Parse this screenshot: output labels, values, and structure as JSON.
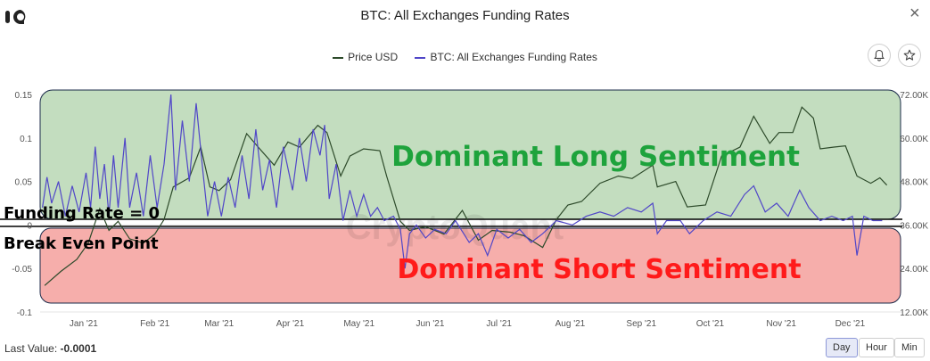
{
  "header": {
    "title": "BTC: All Exchanges Funding Rates",
    "close_glyph": "×"
  },
  "legend": {
    "price_label": "Price USD",
    "funding_label": "BTC: All Exchanges Funding Rates"
  },
  "watermark": "CryptoQuant",
  "annotations": {
    "long": "Dominant Long Sentiment",
    "short": "Dominant Short Sentiment",
    "zero_line": "Funding Rate = 0",
    "break_even": "Break Even Point"
  },
  "footer": {
    "last_value_label": "Last Value:",
    "last_value": "-0.0001"
  },
  "range_buttons": {
    "day": "Day",
    "hour": "Hour",
    "min": "Min"
  },
  "colors": {
    "price": "#2d4a2a",
    "funding": "#5046c8",
    "long_zone": "#c3ddbf",
    "short_zone": "#f6aeab",
    "long_text": "#1ea33c",
    "short_text": "#ff1a1a"
  },
  "chart_data": {
    "type": "line",
    "x_range": [
      "2020-12-13",
      "2021-12-23"
    ],
    "x_ticks": [
      "Jan '21",
      "Feb '21",
      "Mar '21",
      "Apr '21",
      "May '21",
      "Jun '21",
      "Jul '21",
      "Aug '21",
      "Sep '21",
      "Oct '21",
      "Nov '21",
      "Dec '21"
    ],
    "y_left": {
      "ylim": [
        -0.1,
        0.15
      ],
      "ticks": [
        "0.15",
        "0.1",
        "0.05",
        "0",
        "-0.05",
        "-0.1"
      ]
    },
    "y_right": {
      "ylim": [
        12000,
        72000
      ],
      "ticks": [
        "72.00K",
        "60.00K",
        "48.00K",
        "36.00K",
        "24.00K",
        "12.00K"
      ]
    },
    "series": [
      {
        "name": "Price USD",
        "axis": "right",
        "points": [
          [
            "2020-12-15",
            19300
          ],
          [
            "2020-12-22",
            23200
          ],
          [
            "2020-12-29",
            26500
          ],
          [
            "2021-01-03",
            31000
          ],
          [
            "2021-01-08",
            40500
          ],
          [
            "2021-01-12",
            34500
          ],
          [
            "2021-01-16",
            37000
          ],
          [
            "2021-01-21",
            32200
          ],
          [
            "2021-01-27",
            31000
          ],
          [
            "2021-02-01",
            33500
          ],
          [
            "2021-02-05",
            37500
          ],
          [
            "2021-02-09",
            46500
          ],
          [
            "2021-02-16",
            49000
          ],
          [
            "2021-02-21",
            57500
          ],
          [
            "2021-02-25",
            46500
          ],
          [
            "2021-03-01",
            45500
          ],
          [
            "2021-03-06",
            48500
          ],
          [
            "2021-03-13",
            61200
          ],
          [
            "2021-03-18",
            57500
          ],
          [
            "2021-03-25",
            52500
          ],
          [
            "2021-03-31",
            58900
          ],
          [
            "2021-04-05",
            57500
          ],
          [
            "2021-04-13",
            63500
          ],
          [
            "2021-04-17",
            61500
          ],
          [
            "2021-04-23",
            49500
          ],
          [
            "2021-04-27",
            55000
          ],
          [
            "2021-05-03",
            57000
          ],
          [
            "2021-05-10",
            56500
          ],
          [
            "2021-05-13",
            49500
          ],
          [
            "2021-05-19",
            37000
          ],
          [
            "2021-05-23",
            34500
          ],
          [
            "2021-05-30",
            35500
          ],
          [
            "2021-06-07",
            33500
          ],
          [
            "2021-06-15",
            40000
          ],
          [
            "2021-06-22",
            31800
          ],
          [
            "2021-06-28",
            34500
          ],
          [
            "2021-07-06",
            34000
          ],
          [
            "2021-07-12",
            33000
          ],
          [
            "2021-07-20",
            29800
          ],
          [
            "2021-07-26",
            37500
          ],
          [
            "2021-07-31",
            41500
          ],
          [
            "2021-08-06",
            42500
          ],
          [
            "2021-08-14",
            47500
          ],
          [
            "2021-08-22",
            49500
          ],
          [
            "2021-08-28",
            48800
          ],
          [
            "2021-09-06",
            52500
          ],
          [
            "2021-09-08",
            46500
          ],
          [
            "2021-09-16",
            48000
          ],
          [
            "2021-09-21",
            41000
          ],
          [
            "2021-09-29",
            41500
          ],
          [
            "2021-10-06",
            55000
          ],
          [
            "2021-10-14",
            57500
          ],
          [
            "2021-10-20",
            66000
          ],
          [
            "2021-10-27",
            58500
          ],
          [
            "2021-10-31",
            61500
          ],
          [
            "2021-11-06",
            61500
          ],
          [
            "2021-11-10",
            68500
          ],
          [
            "2021-11-15",
            65500
          ],
          [
            "2021-11-18",
            57000
          ],
          [
            "2021-11-24",
            57500
          ],
          [
            "2021-11-29",
            57800
          ],
          [
            "2021-12-04",
            49500
          ],
          [
            "2021-12-10",
            47500
          ],
          [
            "2021-12-14",
            49000
          ],
          [
            "2021-12-17",
            47000
          ]
        ]
      },
      {
        "name": "BTC: All Exchanges Funding Rates",
        "axis": "left",
        "points": [
          [
            "2020-12-14",
            0.02
          ],
          [
            "2020-12-16",
            0.055
          ],
          [
            "2020-12-18",
            0.025
          ],
          [
            "2020-12-21",
            0.05
          ],
          [
            "2020-12-24",
            0.01
          ],
          [
            "2020-12-27",
            0.045
          ],
          [
            "2020-12-30",
            0.015
          ],
          [
            "2021-01-02",
            0.06
          ],
          [
            "2021-01-04",
            0.02
          ],
          [
            "2021-01-06",
            0.09
          ],
          [
            "2021-01-08",
            0.03
          ],
          [
            "2021-01-10",
            0.07
          ],
          [
            "2021-01-12",
            0.01
          ],
          [
            "2021-01-14",
            0.08
          ],
          [
            "2021-01-16",
            0.02
          ],
          [
            "2021-01-19",
            0.1
          ],
          [
            "2021-01-21",
            0.02
          ],
          [
            "2021-01-24",
            0.06
          ],
          [
            "2021-01-27",
            0.01
          ],
          [
            "2021-01-30",
            0.08
          ],
          [
            "2021-02-02",
            0.02
          ],
          [
            "2021-02-05",
            0.07
          ],
          [
            "2021-02-08",
            0.15
          ],
          [
            "2021-02-10",
            0.04
          ],
          [
            "2021-02-13",
            0.12
          ],
          [
            "2021-02-16",
            0.05
          ],
          [
            "2021-02-19",
            0.14
          ],
          [
            "2021-02-22",
            0.06
          ],
          [
            "2021-02-24",
            0.01
          ],
          [
            "2021-02-27",
            0.05
          ],
          [
            "2021-03-02",
            0.01
          ],
          [
            "2021-03-05",
            0.055
          ],
          [
            "2021-03-08",
            0.02
          ],
          [
            "2021-03-11",
            0.08
          ],
          [
            "2021-03-14",
            0.03
          ],
          [
            "2021-03-17",
            0.11
          ],
          [
            "2021-03-20",
            0.04
          ],
          [
            "2021-03-23",
            0.075
          ],
          [
            "2021-03-26",
            0.02
          ],
          [
            "2021-03-29",
            0.09
          ],
          [
            "2021-04-02",
            0.04
          ],
          [
            "2021-04-05",
            0.1
          ],
          [
            "2021-04-08",
            0.05
          ],
          [
            "2021-04-11",
            0.11
          ],
          [
            "2021-04-14",
            0.08
          ],
          [
            "2021-04-16",
            0.115
          ],
          [
            "2021-04-18",
            0.03
          ],
          [
            "2021-04-21",
            0.07
          ],
          [
            "2021-04-24",
            0.005
          ],
          [
            "2021-04-27",
            0.04
          ],
          [
            "2021-04-30",
            0.01
          ],
          [
            "2021-05-03",
            0.035
          ],
          [
            "2021-05-06",
            0.01
          ],
          [
            "2021-05-09",
            0.02
          ],
          [
            "2021-05-12",
            0.005
          ],
          [
            "2021-05-16",
            0.01
          ],
          [
            "2021-05-19",
            -0.005
          ],
          [
            "2021-05-21",
            -0.05
          ],
          [
            "2021-05-23",
            -0.01
          ],
          [
            "2021-05-26",
            0.0
          ],
          [
            "2021-05-30",
            -0.015
          ],
          [
            "2021-06-03",
            -0.005
          ],
          [
            "2021-06-08",
            -0.01
          ],
          [
            "2021-06-12",
            0.005
          ],
          [
            "2021-06-18",
            -0.02
          ],
          [
            "2021-06-22",
            -0.01
          ],
          [
            "2021-06-26",
            -0.035
          ],
          [
            "2021-06-30",
            -0.005
          ],
          [
            "2021-07-05",
            -0.015
          ],
          [
            "2021-07-10",
            -0.005
          ],
          [
            "2021-07-15",
            -0.02
          ],
          [
            "2021-07-20",
            -0.01
          ],
          [
            "2021-07-26",
            0.005
          ],
          [
            "2021-08-02",
            0.0
          ],
          [
            "2021-08-08",
            0.01
          ],
          [
            "2021-08-14",
            0.015
          ],
          [
            "2021-08-20",
            0.01
          ],
          [
            "2021-08-26",
            0.02
          ],
          [
            "2021-09-01",
            0.015
          ],
          [
            "2021-09-06",
            0.025
          ],
          [
            "2021-09-08",
            -0.01
          ],
          [
            "2021-09-12",
            0.005
          ],
          [
            "2021-09-18",
            0.005
          ],
          [
            "2021-09-22",
            -0.01
          ],
          [
            "2021-09-28",
            0.005
          ],
          [
            "2021-10-04",
            0.015
          ],
          [
            "2021-10-10",
            0.01
          ],
          [
            "2021-10-16",
            0.035
          ],
          [
            "2021-10-20",
            0.045
          ],
          [
            "2021-10-25",
            0.015
          ],
          [
            "2021-10-30",
            0.025
          ],
          [
            "2021-11-04",
            0.01
          ],
          [
            "2021-11-09",
            0.04
          ],
          [
            "2021-11-13",
            0.02
          ],
          [
            "2021-11-18",
            0.005
          ],
          [
            "2021-11-23",
            0.01
          ],
          [
            "2021-11-28",
            0.005
          ],
          [
            "2021-12-02",
            0.01
          ],
          [
            "2021-12-04",
            -0.035
          ],
          [
            "2021-12-07",
            0.01
          ],
          [
            "2021-12-11",
            0.005
          ],
          [
            "2021-12-15",
            0.005
          ]
        ]
      }
    ]
  }
}
